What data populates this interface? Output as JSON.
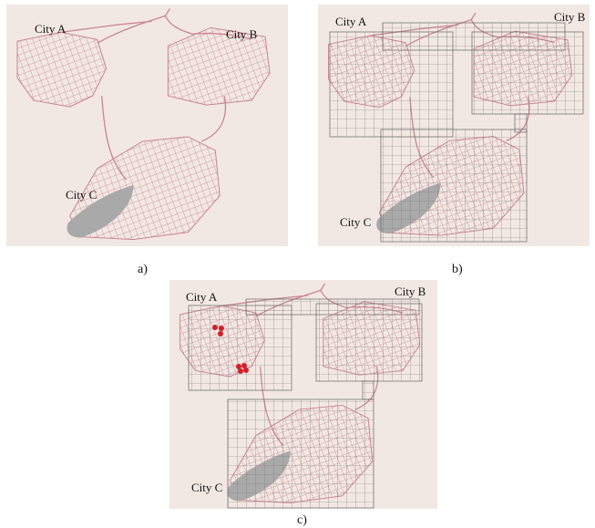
{
  "figure": {
    "panels": [
      {
        "caption": "a)",
        "cities": [
          "City A",
          "City B",
          "City C"
        ]
      },
      {
        "caption": "b)",
        "cities": [
          "City A",
          "City B",
          "City C"
        ]
      },
      {
        "caption": "c)",
        "cities": [
          "City A",
          "City B",
          "City C"
        ]
      }
    ]
  }
}
